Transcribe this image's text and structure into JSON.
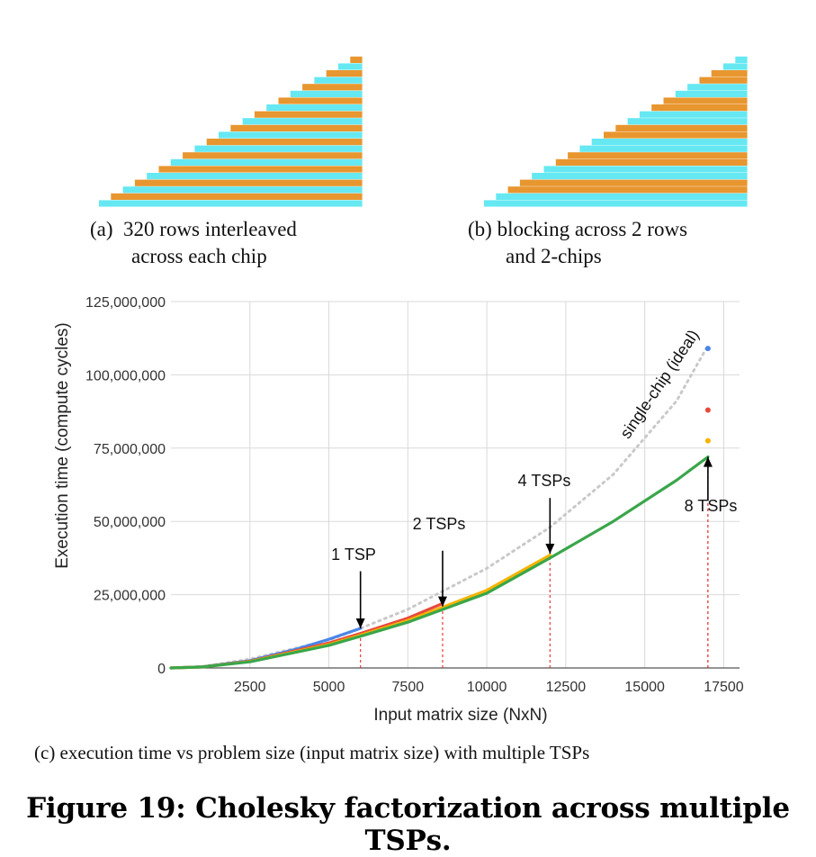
{
  "subfigures": {
    "a": {
      "label": "(a)",
      "line1": "320 rows interleaved",
      "line2": "across each chip"
    },
    "b": {
      "label": "(b)",
      "line1": "blocking across 2 rows",
      "line2": "and 2-chips"
    },
    "c": {
      "caption": "(c) execution time vs problem size (input matrix size) with multiple TSPs"
    }
  },
  "figure_title": "Figure 19: Cholesky factorization across multiple TSPs.",
  "colors": {
    "cyan": "#66e8f2",
    "orange": "#e8962f",
    "blue": "#4a86e8",
    "red": "#e84a3c",
    "yellow": "#f6b400",
    "green": "#3aa64a",
    "ideal": "#c9c9c9",
    "marker": "#e83a3a"
  },
  "chart_data": {
    "type": "line",
    "xlabel": "Input matrix size (NxN)",
    "ylabel": "Execution time (compute cycles)",
    "xlim": [
      0,
      18000
    ],
    "ylim": [
      0,
      125000000
    ],
    "x_ticks": [
      2500,
      5000,
      7500,
      10000,
      12500,
      15000,
      17500
    ],
    "x_tick_labels": [
      "2500",
      "5000",
      "7500",
      "10000",
      "12500",
      "15000",
      "17500"
    ],
    "y_ticks": [
      0,
      25000000,
      50000000,
      75000000,
      100000000,
      125000000
    ],
    "y_tick_labels": [
      "0",
      "25,000,000",
      "50,000,000",
      "75,000,000",
      "100,000,000",
      "125,000,000"
    ],
    "grid": true,
    "series": [
      {
        "color": "#c9c9c9",
        "style": "dotted",
        "x": [
          0,
          1000,
          2500,
          5000,
          6000,
          7500,
          10000,
          12000,
          14000,
          16000,
          17000
        ],
        "y": [
          0,
          500000,
          3000000,
          9500000,
          13500000,
          20000000,
          34000000,
          48000000,
          66000000,
          91000000,
          110000000
        ]
      },
      {
        "color": "#4a86e8",
        "x": [
          0,
          1000,
          2500,
          4000,
          5000,
          6000
        ],
        "y": [
          0,
          400000,
          2500000,
          6500000,
          9800000,
          13500000
        ]
      },
      {
        "color": "#e84a3c",
        "x": [
          0,
          1000,
          2500,
          5000,
          6000,
          7500,
          8600
        ],
        "y": [
          0,
          350000,
          2300000,
          8500000,
          11800000,
          17000000,
          22000000
        ]
      },
      {
        "color": "#f6b400",
        "x": [
          0,
          1000,
          2500,
          5000,
          6000,
          7500,
          10000,
          12000
        ],
        "y": [
          0,
          350000,
          2200000,
          8000000,
          11200000,
          16200000,
          26500000,
          38500000
        ]
      },
      {
        "color": "#3aa64a",
        "x": [
          0,
          1000,
          2500,
          5000,
          6000,
          7500,
          10000,
          12000,
          14000,
          16000,
          17000
        ],
        "y": [
          0,
          330000,
          2100000,
          7700000,
          10800000,
          15600000,
          25500000,
          37500000,
          50000000,
          64000000,
          72000000
        ]
      }
    ],
    "points": [
      {
        "color": "#4a86e8",
        "x": 17000,
        "y": 109000000
      },
      {
        "color": "#e84a3c",
        "x": 17000,
        "y": 88000000
      },
      {
        "color": "#f6b400",
        "x": 17000,
        "y": 77500000
      }
    ],
    "annotations": [
      {
        "text": "1 TSP",
        "arrow_from": [
          6000,
          33000000
        ],
        "arrow_to": [
          6000,
          13500000
        ]
      },
      {
        "text": "2 TSPs",
        "arrow_from": [
          8600,
          40000000
        ],
        "arrow_to": [
          8600,
          21000000
        ]
      },
      {
        "text": "4 TSPs",
        "arrow_from": [
          12000,
          58000000
        ],
        "arrow_to": [
          12000,
          39000000
        ]
      },
      {
        "text": "8 TSPs",
        "arrow_from": [
          17000,
          57000000
        ],
        "arrow_to": [
          17000,
          72000000
        ]
      },
      {
        "text": "single-chip (ideal)"
      }
    ],
    "markers_x": [
      6000,
      8600,
      12000,
      17000
    ]
  }
}
